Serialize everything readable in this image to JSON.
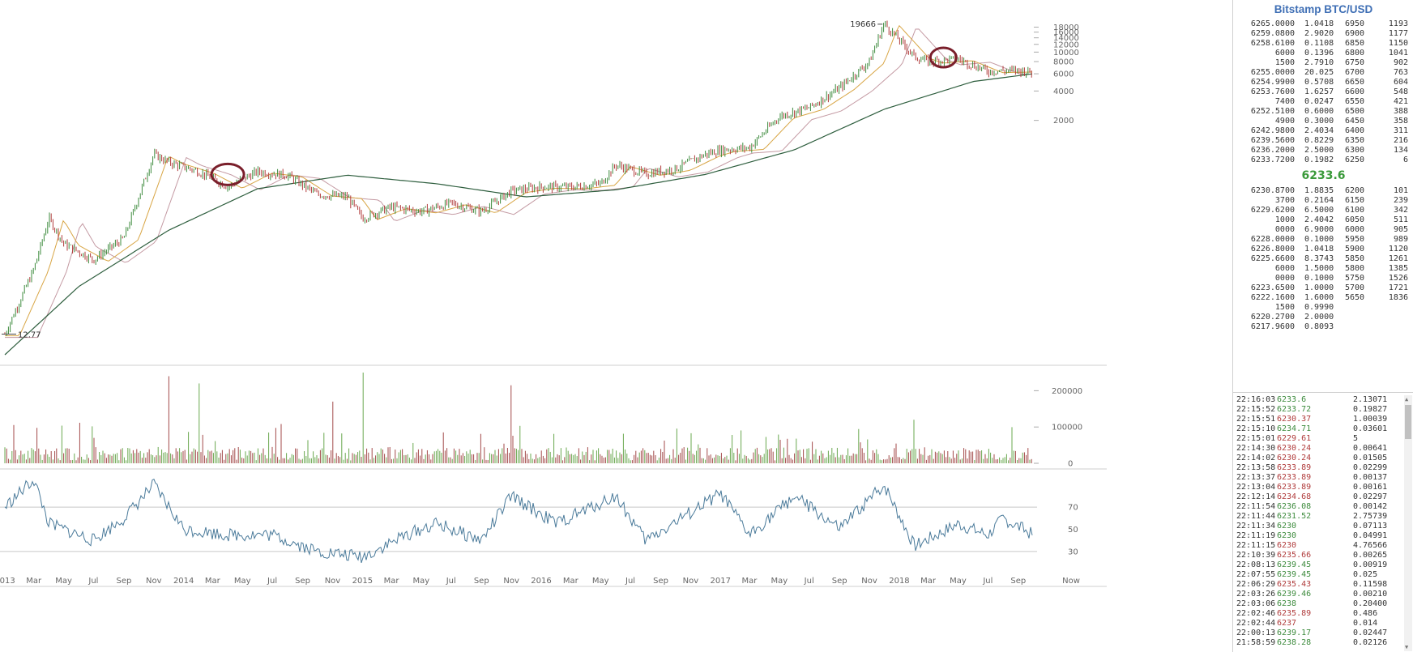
{
  "chart_data": {
    "type": "line",
    "title": "",
    "price_axis": {
      "scale": "log",
      "ticks": [
        "18000",
        "16000",
        "14000",
        "12000",
        "10000",
        "8000",
        "6000",
        "4000",
        "2000"
      ]
    },
    "annotations": {
      "high_label": "19666",
      "low_label": "12.77"
    },
    "volume_axis": {
      "ticks": [
        "200000",
        "100000",
        "0"
      ]
    },
    "rsi_axis": {
      "ticks": [
        "70",
        "50",
        "30"
      ]
    },
    "x_labels": [
      "2013",
      "Mar",
      "May",
      "Jul",
      "Sep",
      "Nov",
      "2014",
      "Mar",
      "May",
      "Jul",
      "Sep",
      "Nov",
      "2015",
      "Mar",
      "May",
      "Jul",
      "Sep",
      "Nov",
      "2016",
      "Mar",
      "May",
      "Jul",
      "Sep",
      "Nov",
      "2017",
      "Mar",
      "May",
      "Jul",
      "Sep",
      "Nov",
      "2018",
      "Mar",
      "May",
      "Jul",
      "Sep",
      "Now"
    ],
    "price_series_approx": [
      {
        "date": "2013-01",
        "value": 13
      },
      {
        "date": "2013-03",
        "value": 60
      },
      {
        "date": "2013-04",
        "value": 200
      },
      {
        "date": "2013-05",
        "value": 110
      },
      {
        "date": "2013-07",
        "value": 75
      },
      {
        "date": "2013-09",
        "value": 125
      },
      {
        "date": "2013-11",
        "value": 900
      },
      {
        "date": "2013-12",
        "value": 750
      },
      {
        "date": "2014-02",
        "value": 600
      },
      {
        "date": "2014-04",
        "value": 420
      },
      {
        "date": "2014-06",
        "value": 600
      },
      {
        "date": "2014-08",
        "value": 550
      },
      {
        "date": "2014-10",
        "value": 350
      },
      {
        "date": "2014-12",
        "value": 330
      },
      {
        "date": "2015-01",
        "value": 200
      },
      {
        "date": "2015-03",
        "value": 260
      },
      {
        "date": "2015-05",
        "value": 235
      },
      {
        "date": "2015-07",
        "value": 285
      },
      {
        "date": "2015-09",
        "value": 235
      },
      {
        "date": "2015-11",
        "value": 380
      },
      {
        "date": "2016-01",
        "value": 420
      },
      {
        "date": "2016-03",
        "value": 415
      },
      {
        "date": "2016-05",
        "value": 450
      },
      {
        "date": "2016-06",
        "value": 700
      },
      {
        "date": "2016-08",
        "value": 570
      },
      {
        "date": "2016-10",
        "value": 640
      },
      {
        "date": "2016-12",
        "value": 900
      },
      {
        "date": "2017-01",
        "value": 1000
      },
      {
        "date": "2017-03",
        "value": 1050
      },
      {
        "date": "2017-05",
        "value": 2200
      },
      {
        "date": "2017-07",
        "value": 2700
      },
      {
        "date": "2017-09",
        "value": 4300
      },
      {
        "date": "2017-11",
        "value": 8000
      },
      {
        "date": "2017-12",
        "value": 19666
      },
      {
        "date": "2018-02",
        "value": 9000
      },
      {
        "date": "2018-03",
        "value": 8000
      },
      {
        "date": "2018-05",
        "value": 8500
      },
      {
        "date": "2018-07",
        "value": 6400
      },
      {
        "date": "2018-09",
        "value": 6500
      },
      {
        "date": "2018-10",
        "value": 6233
      }
    ],
    "sma_long_approx": [
      {
        "date": "2013-01",
        "value": 8
      },
      {
        "date": "2013-06",
        "value": 40
      },
      {
        "date": "2013-12",
        "value": 150
      },
      {
        "date": "2014-06",
        "value": 400
      },
      {
        "date": "2014-12",
        "value": 550
      },
      {
        "date": "2015-06",
        "value": 450
      },
      {
        "date": "2015-12",
        "value": 330
      },
      {
        "date": "2016-06",
        "value": 390
      },
      {
        "date": "2016-12",
        "value": 560
      },
      {
        "date": "2017-06",
        "value": 1000
      },
      {
        "date": "2017-12",
        "value": 2600
      },
      {
        "date": "2018-06",
        "value": 5000
      },
      {
        "date": "2018-10",
        "value": 6000
      }
    ],
    "rsi_series_approx": [
      {
        "date": "2013-01",
        "value": 70
      },
      {
        "date": "2013-03",
        "value": 95
      },
      {
        "date": "2013-04",
        "value": 55
      },
      {
        "date": "2013-07",
        "value": 40
      },
      {
        "date": "2013-09",
        "value": 60
      },
      {
        "date": "2013-11",
        "value": 90
      },
      {
        "date": "2014-01",
        "value": 50
      },
      {
        "date": "2014-04",
        "value": 45
      },
      {
        "date": "2014-07",
        "value": 45
      },
      {
        "date": "2014-10",
        "value": 30
      },
      {
        "date": "2015-01",
        "value": 25
      },
      {
        "date": "2015-04",
        "value": 45
      },
      {
        "date": "2015-06",
        "value": 55
      },
      {
        "date": "2015-09",
        "value": 40
      },
      {
        "date": "2015-11",
        "value": 80
      },
      {
        "date": "2016-02",
        "value": 55
      },
      {
        "date": "2016-06",
        "value": 80
      },
      {
        "date": "2016-08",
        "value": 40
      },
      {
        "date": "2016-11",
        "value": 65
      },
      {
        "date": "2017-01",
        "value": 82
      },
      {
        "date": "2017-03",
        "value": 45
      },
      {
        "date": "2017-06",
        "value": 80
      },
      {
        "date": "2017-09",
        "value": 50
      },
      {
        "date": "2017-12",
        "value": 90
      },
      {
        "date": "2018-02",
        "value": 35
      },
      {
        "date": "2018-05",
        "value": 55
      },
      {
        "date": "2018-07",
        "value": 45
      },
      {
        "date": "2018-08",
        "value": 60
      },
      {
        "date": "2018-10",
        "value": 45
      }
    ]
  },
  "colors": {
    "price_up": "#3d8b3d",
    "price_down": "#b03b3b",
    "sma_long": "#2e5e3e",
    "ma_fast": "#d8a544",
    "ma_slow": "#c49aa3",
    "rsi": "#4a7a9a",
    "circle": "#7a1f2b",
    "grid": "#e3e3e3",
    "axis_text": "#666666"
  },
  "panel": {
    "title": "Bitstamp BTC/USD",
    "mid_price": "6233.6",
    "asks": [
      {
        "price": "6265.0",
        "price_rest": "000",
        "amount": "1.0418",
        "book_price": "6950",
        "book_sum": "1193"
      },
      {
        "price": "6259.08",
        "price_rest": "00",
        "amount": "2.9020",
        "book_price": "6900",
        "book_sum": "1177"
      },
      {
        "price": "6258.61",
        "price_rest": "00",
        "amount": "0.1108",
        "book_price": "6850",
        "book_sum": "1150"
      },
      {
        "price": "6",
        "price_rest": "000",
        "amount": "0.1396",
        "book_price": "6800",
        "book_sum": "1041"
      },
      {
        "price": "15",
        "price_rest": "00",
        "amount": "2.7910",
        "book_price": "6750",
        "book_sum": "902"
      },
      {
        "price": "6255.0",
        "price_rest": "000",
        "amount": "20.025",
        "book_price": "6700",
        "book_sum": "763"
      },
      {
        "price": "6254.99",
        "price_rest": "00",
        "amount": "0.5708",
        "book_price": "6650",
        "book_sum": "604"
      },
      {
        "price": "6253.76",
        "price_rest": "00",
        "amount": "1.6257",
        "book_price": "6600",
        "book_sum": "548"
      },
      {
        "price": "74",
        "price_rest": "00",
        "amount": "0.0247",
        "book_price": "6550",
        "book_sum": "421"
      },
      {
        "price": "6252.51",
        "price_rest": "00",
        "amount": "0.6000",
        "book_price": "6500",
        "book_sum": "388"
      },
      {
        "price": "49",
        "price_rest": "00",
        "amount": "0.3000",
        "book_price": "6450",
        "book_sum": "358"
      },
      {
        "price": "6242.98",
        "price_rest": "00",
        "amount": "2.4034",
        "book_price": "6400",
        "book_sum": "311"
      },
      {
        "price": "6239.56",
        "price_rest": "00",
        "amount": "0.8229",
        "book_price": "6350",
        "book_sum": "216"
      },
      {
        "price": "6236.2",
        "price_rest": "000",
        "amount": "2.5000",
        "book_price": "6300",
        "book_sum": "134"
      },
      {
        "price": "6233.72",
        "price_rest": "00",
        "amount": "0.1982",
        "book_price": "6250",
        "book_sum": "6"
      }
    ],
    "bids": [
      {
        "price": "6230.87",
        "price_rest": "00",
        "amount": "1.8835",
        "book_price": "6200",
        "book_sum": "101"
      },
      {
        "price": "37",
        "price_rest": "00",
        "amount": "0.2164",
        "book_price": "6150",
        "book_sum": "239"
      },
      {
        "price": "6229.62",
        "price_rest": "00",
        "amount": "6.5000",
        "book_price": "6100",
        "book_sum": "342"
      },
      {
        "price": "10",
        "price_rest": "00",
        "amount": "2.4042",
        "book_price": "6050",
        "book_sum": "511"
      },
      {
        "price": "0",
        "price_rest": "000",
        "amount": "6.9000",
        "book_price": "6000",
        "book_sum": "905"
      },
      {
        "price": "6228.0",
        "price_rest": "000",
        "amount": "0.1000",
        "book_price": "5950",
        "book_sum": "989"
      },
      {
        "price": "6226.8",
        "price_rest": "000",
        "amount": "1.0418",
        "book_price": "5900",
        "book_sum": "1120"
      },
      {
        "price": "6225.66",
        "price_rest": "00",
        "amount": "8.3743",
        "book_price": "5850",
        "book_sum": "1261"
      },
      {
        "price": "60",
        "price_rest": "00",
        "amount": "1.5000",
        "book_price": "5800",
        "book_sum": "1385"
      },
      {
        "price": "0",
        "price_rest": "000",
        "amount": "0.1000",
        "book_price": "5750",
        "book_sum": "1526"
      },
      {
        "price": "6223.65",
        "price_rest": "00",
        "amount": "1.0000",
        "book_price": "5700",
        "book_sum": "1721"
      },
      {
        "price": "6222.16",
        "price_rest": "00",
        "amount": "1.6000",
        "book_price": "5650",
        "book_sum": "1836"
      },
      {
        "price": "15",
        "price_rest": "00",
        "amount": "0.9990",
        "book_price": "",
        "book_sum": ""
      },
      {
        "price": "6220.27",
        "price_rest": "00",
        "amount": "2.0000",
        "book_price": "",
        "book_sum": ""
      },
      {
        "price": "6217.96",
        "price_rest": "00",
        "amount": "0.8093",
        "book_price": "",
        "book_sum": ""
      }
    ],
    "trades": [
      {
        "time": "22:16:03",
        "price": "6233.6",
        "amount": "2.13071",
        "dir": "up"
      },
      {
        "time": "22:15:52",
        "price": "6233.72",
        "amount": "0.19827",
        "dir": "up"
      },
      {
        "time": "22:15:51",
        "price": "6230.37",
        "amount": "1.00039",
        "dir": "down"
      },
      {
        "time": "22:15:10",
        "price": "6234.71",
        "amount": "0.03601",
        "dir": "up"
      },
      {
        "time": "22:15:01",
        "price": "6229.61",
        "amount": "5",
        "dir": "down"
      },
      {
        "time": "22:14:30",
        "price": "6230.24",
        "amount": "0.00641",
        "dir": "down"
      },
      {
        "time": "22:14:02",
        "price": "6230.24",
        "amount": "0.01505",
        "dir": "down"
      },
      {
        "time": "22:13:58",
        "price": "6233.89",
        "amount": "0.02299",
        "dir": "down"
      },
      {
        "time": "22:13:37",
        "price": "6233.89",
        "amount": "0.00137",
        "dir": "down"
      },
      {
        "time": "22:13:04",
        "price": "6233.89",
        "amount": "0.00161",
        "dir": "down"
      },
      {
        "time": "22:12:14",
        "price": "6234.68",
        "amount": "0.02297",
        "dir": "down"
      },
      {
        "time": "22:11:54",
        "price": "6236.08",
        "amount": "0.00142",
        "dir": "up"
      },
      {
        "time": "22:11:44",
        "price": "6231.52",
        "amount": "2.75739",
        "dir": "up"
      },
      {
        "time": "22:11:34",
        "price": "6230",
        "amount": "0.07113",
        "dir": "up"
      },
      {
        "time": "22:11:19",
        "price": "6230",
        "amount": "0.04991",
        "dir": "up"
      },
      {
        "time": "22:11:15",
        "price": "6230",
        "amount": "4.76566",
        "dir": "down"
      },
      {
        "time": "22:10:39",
        "price": "6235.66",
        "amount": "0.00265",
        "dir": "down"
      },
      {
        "time": "22:08:13",
        "price": "6239.45",
        "amount": "0.00919",
        "dir": "up"
      },
      {
        "time": "22:07:55",
        "price": "6239.45",
        "amount": "0.025",
        "dir": "up"
      },
      {
        "time": "22:06:29",
        "price": "6235.43",
        "amount": "0.11598",
        "dir": "down"
      },
      {
        "time": "22:03:26",
        "price": "6239.46",
        "amount": "0.00210",
        "dir": "up"
      },
      {
        "time": "22:03:06",
        "price": "6238",
        "amount": "0.20400",
        "dir": "up"
      },
      {
        "time": "22:02:46",
        "price": "6235.89",
        "amount": "0.486",
        "dir": "down"
      },
      {
        "time": "22:02:44",
        "price": "6237",
        "amount": "0.014",
        "dir": "down"
      },
      {
        "time": "22:00:13",
        "price": "6239.17",
        "amount": "0.02447",
        "dir": "up"
      },
      {
        "time": "21:58:59",
        "price": "6238.28",
        "amount": "0.02126",
        "dir": "up"
      }
    ]
  }
}
